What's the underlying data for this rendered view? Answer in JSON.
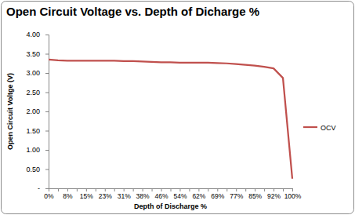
{
  "chart_data": {
    "type": "line",
    "title": "Open Circuit Voltage vs. Depth of Dicharge %",
    "x_label": "Depth of Discharge %",
    "y_label": "Open Circuit Voltge (V)",
    "categories": [
      "0%",
      null,
      "8%",
      null,
      "15%",
      null,
      "23%",
      null,
      "31%",
      null,
      "38%",
      null,
      "46%",
      null,
      "54%",
      null,
      "62%",
      null,
      "69%",
      null,
      "77%",
      null,
      "85%",
      null,
      "92%",
      null,
      "100%"
    ],
    "series": [
      {
        "name": "OCV",
        "color": "#c0504d",
        "values": [
          3.35,
          3.33,
          3.32,
          3.32,
          3.32,
          3.32,
          3.32,
          3.32,
          3.31,
          3.31,
          3.3,
          3.29,
          3.28,
          3.28,
          3.27,
          3.27,
          3.27,
          3.27,
          3.26,
          3.25,
          3.23,
          3.21,
          3.19,
          3.16,
          3.12,
          2.87,
          0.25
        ]
      }
    ],
    "ylim": [
      0,
      4
    ],
    "yticks": [
      {
        "value": 0,
        "label": "-"
      },
      {
        "value": 0.5,
        "label": "0.50"
      },
      {
        "value": 1,
        "label": "1.00"
      },
      {
        "value": 1.5,
        "label": "1.50"
      },
      {
        "value": 2,
        "label": "2.00"
      },
      {
        "value": 2.5,
        "label": "2.50"
      },
      {
        "value": 3,
        "label": "3.00"
      },
      {
        "value": 3.5,
        "label": "3.50"
      },
      {
        "value": 4,
        "label": "4.00"
      }
    ],
    "grid": false,
    "legend": "right"
  }
}
